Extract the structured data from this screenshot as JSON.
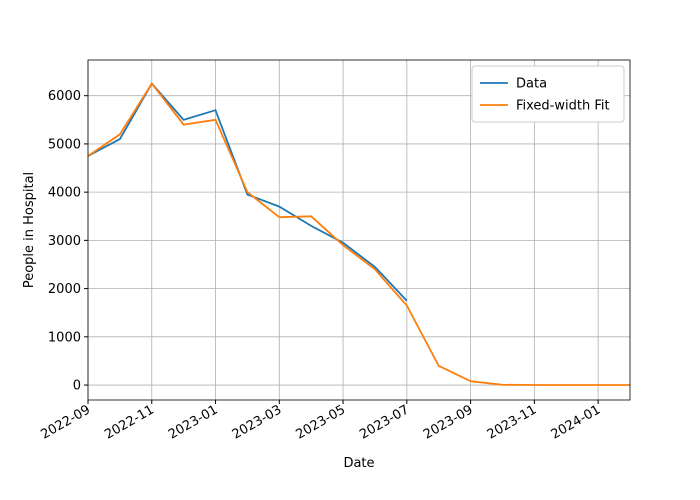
{
  "chart_data": {
    "type": "line",
    "x_label": "Date",
    "y_label": "People in Hospital",
    "x": [
      "2022-09",
      "2022-10",
      "2022-11",
      "2022-12",
      "2023-01",
      "2023-02",
      "2023-03",
      "2023-04",
      "2023-05",
      "2023-06",
      "2023-07",
      "2023-08",
      "2023-09",
      "2023-10",
      "2023-11",
      "2023-12",
      "2024-01",
      "2024-02"
    ],
    "series": [
      {
        "name": "Data",
        "color": "#1f77b4",
        "values": [
          4750,
          5100,
          6250,
          5500,
          5700,
          3950,
          3700,
          3300,
          2950,
          2450,
          1750,
          null,
          null,
          null,
          null,
          null,
          null,
          null
        ]
      },
      {
        "name": "Fixed-width Fit",
        "color": "#ff7f0e",
        "values": [
          4750,
          5200,
          6250,
          5400,
          5500,
          4000,
          3480,
          3500,
          2900,
          2400,
          1650,
          400,
          80,
          5,
          0,
          0,
          0,
          0
        ]
      }
    ],
    "xlim": [
      "2022-09",
      "2024-02"
    ],
    "xticks": [
      "2022-09",
      "2022-11",
      "2023-01",
      "2023-03",
      "2023-05",
      "2023-07",
      "2023-09",
      "2023-11",
      "2024-01"
    ],
    "ylim": [
      -310,
      6740
    ],
    "yticks": [
      0,
      1000,
      2000,
      3000,
      4000,
      5000,
      6000
    ],
    "grid": true,
    "legend": "upper right"
  }
}
